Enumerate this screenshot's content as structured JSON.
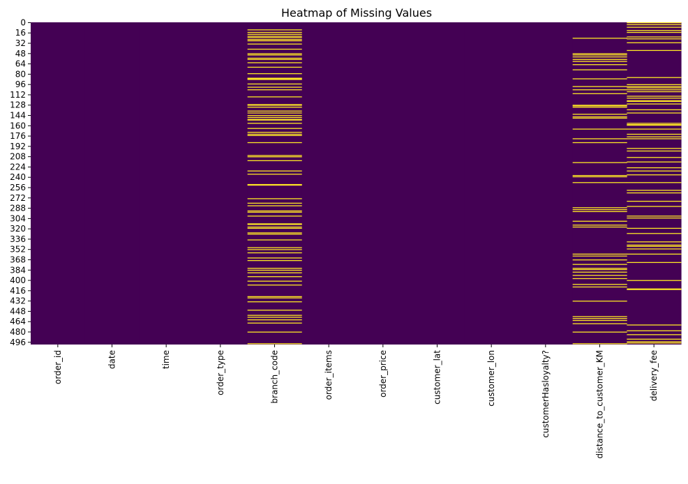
{
  "chart_data": {
    "type": "heatmap",
    "title": "Heatmap of Missing Values",
    "xlabel": "",
    "ylabel": "",
    "columns": [
      "order_id",
      "date",
      "time",
      "order_type",
      "branch_code",
      "order_items",
      "order_price",
      "customer_lat",
      "customer_lon",
      "customerHasloyalty?",
      "distance_to_customer_KM",
      "delivery_fee"
    ],
    "row_count": 500,
    "y_tick_labels": [
      "0",
      "16",
      "32",
      "48",
      "64",
      "80",
      "96",
      "112",
      "128",
      "144",
      "160",
      "176",
      "192",
      "208",
      "224",
      "240",
      "256",
      "272",
      "288",
      "304",
      "320",
      "336",
      "352",
      "368",
      "384",
      "400",
      "416",
      "432",
      "448",
      "464",
      "480",
      "496"
    ],
    "y_tick_values": [
      0,
      16,
      32,
      48,
      64,
      80,
      96,
      112,
      128,
      144,
      160,
      176,
      192,
      208,
      224,
      240,
      256,
      272,
      288,
      304,
      320,
      336,
      352,
      368,
      384,
      400,
      416,
      432,
      448,
      464,
      480,
      496
    ],
    "colors": {
      "present": "#440154",
      "missing": "#fde725"
    },
    "missing_rows": {
      "branch_code": [
        11,
        15,
        18,
        21,
        23,
        26,
        28,
        33,
        41,
        48,
        50,
        55,
        57,
        62,
        69,
        79,
        86,
        87,
        88,
        95,
        100,
        104,
        115,
        127,
        128,
        131,
        137,
        140,
        144,
        147,
        150,
        151,
        156,
        164,
        170,
        173,
        175,
        186,
        206,
        208,
        214,
        230,
        235,
        251,
        252,
        273,
        280,
        284,
        292,
        294,
        300,
        312,
        313,
        317,
        319,
        326,
        328,
        337,
        349,
        352,
        357,
        365,
        369,
        381,
        384,
        388,
        394,
        401,
        407,
        425,
        427,
        433,
        446,
        454,
        457,
        461,
        466,
        480,
        498
      ],
      "distance_to_customer_KM": [
        24,
        48,
        50,
        53,
        57,
        60,
        65,
        73,
        87,
        99,
        104,
        110,
        128,
        129,
        131,
        142,
        146,
        148,
        165,
        180,
        186,
        217,
        237,
        239,
        248,
        287,
        290,
        293,
        308,
        314,
        317,
        359,
        362,
        368,
        375,
        381,
        383,
        387,
        392,
        397,
        406,
        410,
        432,
        456,
        459,
        462,
        467,
        480,
        498
      ],
      "delivery_fee": [
        0,
        3,
        7,
        12,
        15,
        22,
        25,
        31,
        43,
        85,
        96,
        99,
        101,
        104,
        107,
        114,
        117,
        121,
        122,
        126,
        135,
        140,
        156,
        158,
        159,
        165,
        173,
        177,
        180,
        195,
        199,
        209,
        216,
        225,
        230,
        236,
        248,
        260,
        264,
        277,
        285,
        300,
        303,
        319,
        327,
        340,
        345,
        347,
        351,
        359,
        372,
        400,
        413,
        414,
        469,
        478,
        484,
        491,
        495,
        497
      ]
    }
  }
}
